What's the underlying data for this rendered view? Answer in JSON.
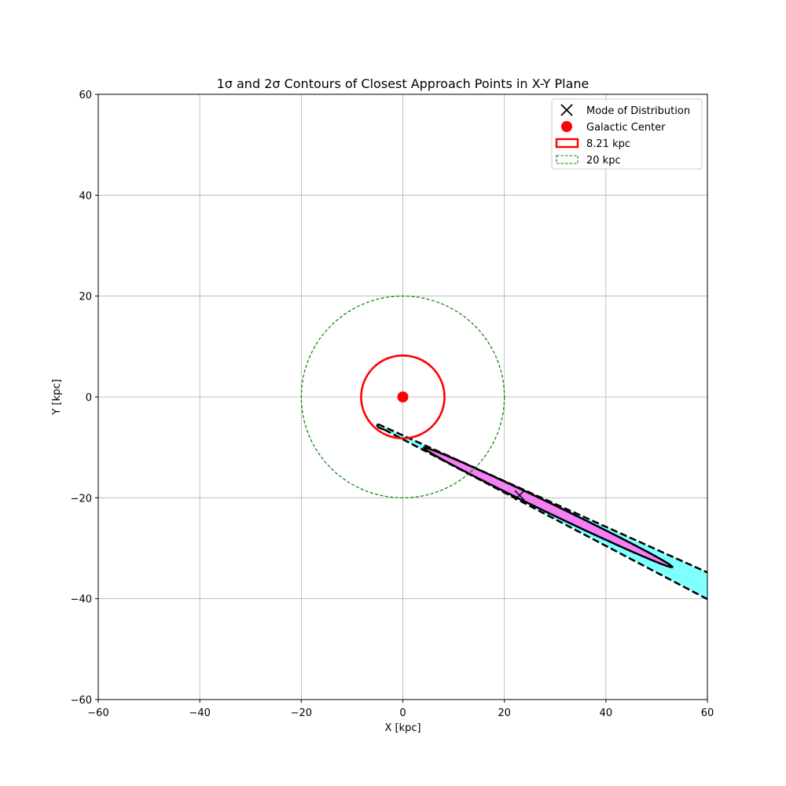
{
  "chart_data": {
    "type": "contour",
    "title": "1σ and 2σ Contours of Closest Approach Points in X-Y Plane",
    "xlabel": "X [kpc]",
    "ylabel": "Y [kpc]",
    "xlim": [
      -60,
      60
    ],
    "ylim": [
      -60,
      60
    ],
    "x_ticks": [
      -60,
      -40,
      -20,
      0,
      20,
      40,
      60
    ],
    "y_ticks": [
      -60,
      -40,
      -20,
      0,
      20,
      40,
      60
    ],
    "x_tick_labels": [
      "−60",
      "−40",
      "−20",
      "0",
      "20",
      "40",
      "60"
    ],
    "y_tick_labels": [
      "−60",
      "−40",
      "−20",
      "0",
      "20",
      "40",
      "60"
    ],
    "grid": true,
    "legend_position": "upper-right",
    "legend": [
      {
        "label": "Mode of Distribution",
        "marker": "x",
        "color": "#000000"
      },
      {
        "label": "Galactic Center",
        "marker": "circle",
        "color": "#ff0000"
      },
      {
        "label": "8.21 kpc",
        "marker": "rect-solid",
        "color": "#ff0000"
      },
      {
        "label": "20 kpc",
        "marker": "rect-dashed",
        "color": "#008000"
      }
    ],
    "mode_point": {
      "x": 23,
      "y": -19.5
    },
    "galactic_center": {
      "x": 0,
      "y": 0
    },
    "circles": [
      {
        "label": "8.21 kpc",
        "radius": 8.21,
        "color": "#ff0000",
        "style": "solid"
      },
      {
        "label": "20 kpc",
        "radius": 20,
        "color": "#008000",
        "style": "dashed"
      }
    ],
    "contours": [
      {
        "level": "2σ",
        "fill": "#80ffff",
        "line_style": "dashed",
        "polygon": [
          [
            -4.9,
            -5.4
          ],
          [
            60,
            -34.8
          ],
          [
            60,
            -40.1
          ],
          [
            -3.6,
            -6.5
          ]
        ]
      },
      {
        "level": "1σ",
        "fill": "#f57ff5",
        "line_style": "solid",
        "ellipse": {
          "center": [
            28.6,
            -21.9
          ],
          "semi_major": 27.2,
          "semi_minor": 0.95,
          "angle_deg": -25.8
        }
      }
    ]
  }
}
